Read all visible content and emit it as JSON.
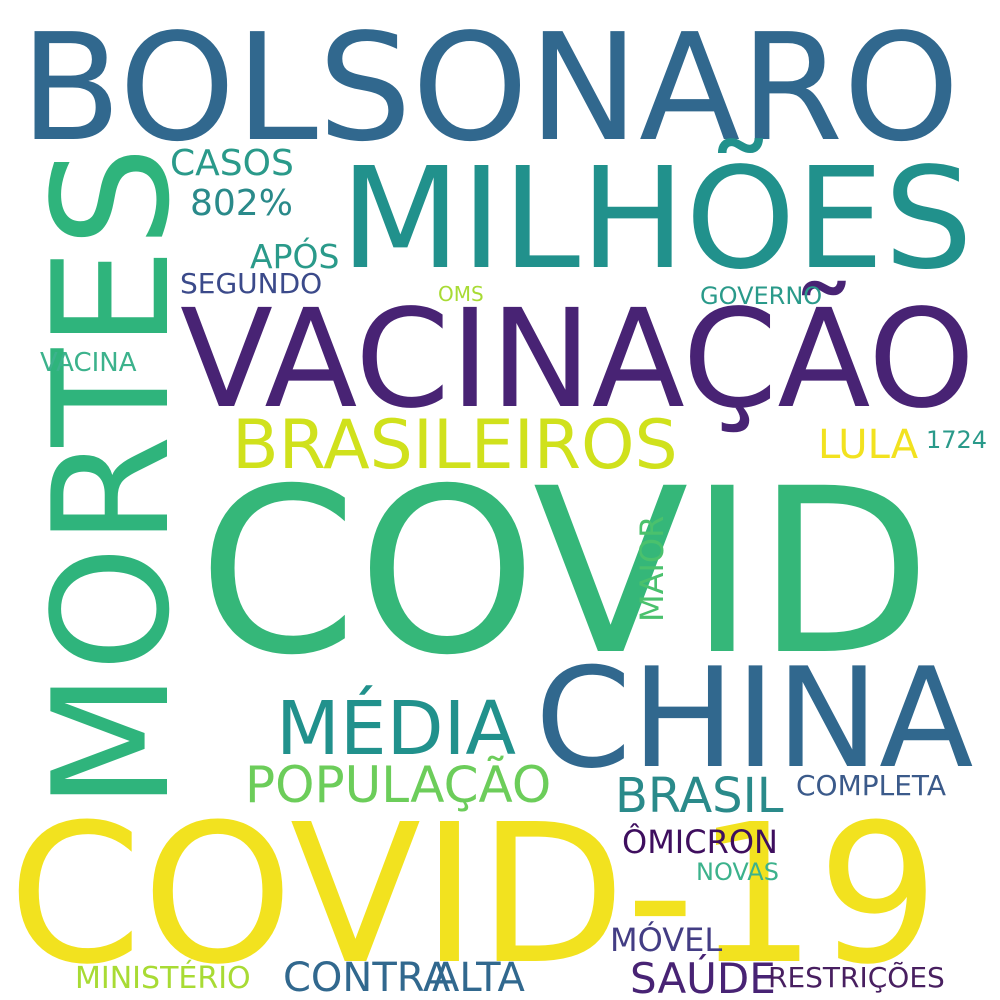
{
  "words": [
    {
      "text": "BOLSONARO",
      "color": "#31688e"
    },
    {
      "text": "MILHÕES",
      "color": "#21918c"
    },
    {
      "text": "MORTES",
      "color": "#2fb47c"
    },
    {
      "text": "VACINAÇÃO",
      "color": "#482374"
    },
    {
      "text": "BRASILEIROS",
      "color": "#d0e11c"
    },
    {
      "text": "COVID",
      "color": "#35b779"
    },
    {
      "text": "CHINA",
      "color": "#31688e"
    },
    {
      "text": "MÉDIA",
      "color": "#21918c"
    },
    {
      "text": "POPULAÇÃO",
      "color": "#6ccd5a"
    },
    {
      "text": "COVID-19",
      "color": "#f2e21f"
    },
    {
      "text": "CASOS",
      "color": "#2a9a8a"
    },
    {
      "text": "802%",
      "color": "#2a8a8a"
    },
    {
      "text": "APÓS",
      "color": "#2a9a8a"
    },
    {
      "text": "SEGUNDO",
      "color": "#3b4a8a"
    },
    {
      "text": "OMS",
      "color": "#a8db34"
    },
    {
      "text": "GOVERNO",
      "color": "#2a9a8a"
    },
    {
      "text": "VACINA",
      "color": "#3cb28c"
    },
    {
      "text": "LULA",
      "color": "#f2e21f"
    },
    {
      "text": "1724",
      "color": "#2a9a8a"
    },
    {
      "text": "MAIOR",
      "color": "#4ac16d"
    },
    {
      "text": "BRASIL",
      "color": "#2a8a8a"
    },
    {
      "text": "COMPLETA",
      "color": "#3b5a8a"
    },
    {
      "text": "ÔMICRON",
      "color": "#3e0e5e"
    },
    {
      "text": "NOVAS",
      "color": "#3cb28c"
    },
    {
      "text": "MÓVEL",
      "color": "#433d84"
    },
    {
      "text": "MINISTÉRIO",
      "color": "#a8db34"
    },
    {
      "text": "CONTRA",
      "color": "#31688e"
    },
    {
      "text": "ALTA",
      "color": "#31688e"
    },
    {
      "text": "SAÚDE",
      "color": "#482374"
    },
    {
      "text": "RESTRIÇÕES",
      "color": "#481f60"
    }
  ]
}
